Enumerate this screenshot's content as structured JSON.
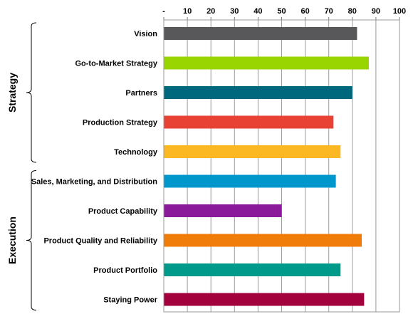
{
  "chart_data": {
    "type": "bar",
    "orientation": "horizontal",
    "categories": [
      "Vision",
      "Go-to-Market Strategy",
      "Partners",
      "Production Strategy",
      "Technology",
      "Sales, Marketing, and Distribution",
      "Product Capability",
      "Product Quality and Reliability",
      "Product Portfolio",
      "Staying Power"
    ],
    "values": [
      82,
      87,
      80,
      72,
      75,
      73,
      50,
      84,
      75,
      85
    ],
    "colors": [
      "#58585a",
      "#99d500",
      "#00687d",
      "#e84234",
      "#fbb822",
      "#0097cc",
      "#8a1a9a",
      "#f07c0a",
      "#009a8a",
      "#a3003e"
    ],
    "xlim": [
      0,
      100
    ],
    "x_ticks": [
      "-",
      "10",
      "20",
      "30",
      "40",
      "50",
      "60",
      "70",
      "80",
      "90",
      "100"
    ],
    "x_axis_position": "top",
    "grid": true,
    "groups": [
      {
        "label": "Strategy",
        "categories": [
          0,
          4
        ]
      },
      {
        "label": "Execution",
        "categories": [
          5,
          9
        ]
      }
    ],
    "title": "",
    "xlabel": "",
    "ylabel": ""
  }
}
